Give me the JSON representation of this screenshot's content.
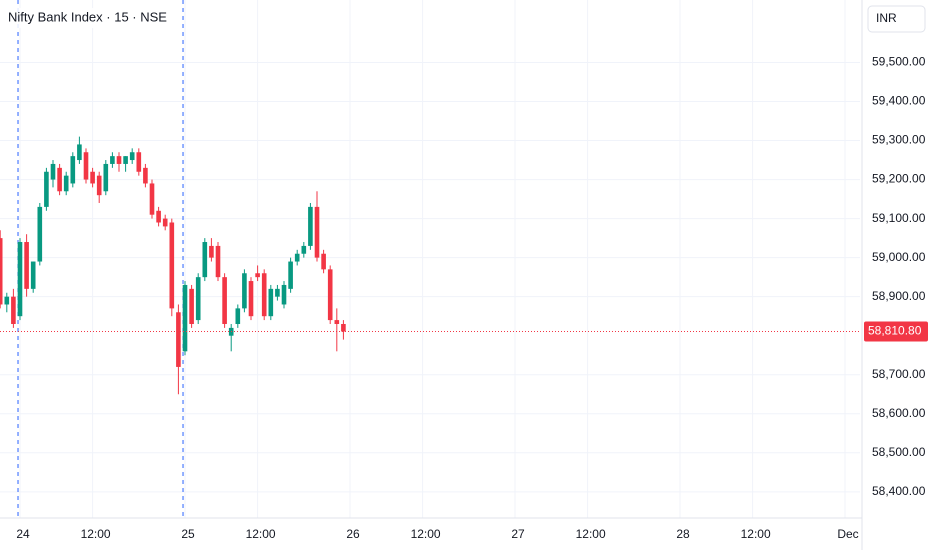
{
  "chart_data": {
    "type": "candlestick",
    "title": "Nifty Bank Index · 15 · NSE",
    "currency": "INR",
    "up_color": "#089981",
    "down_color": "#f23645",
    "grid": true,
    "x": [
      -3,
      -2,
      -1,
      0,
      1,
      2,
      3,
      4,
      5,
      6,
      7,
      8,
      9,
      10,
      11,
      12,
      13,
      14,
      15,
      16,
      17,
      18,
      19,
      20,
      21,
      22,
      23,
      24,
      25,
      26,
      27,
      28,
      29,
      30,
      31,
      32,
      33,
      34,
      35,
      36,
      37,
      38,
      39,
      40,
      41,
      42,
      43,
      44,
      45,
      46,
      47,
      48,
      49
    ],
    "open": [
      59050,
      58880,
      58900,
      58850,
      59040,
      58920,
      58990,
      59130,
      59200,
      59230,
      59170,
      59190,
      59250,
      59270,
      59220,
      59210,
      59170,
      59240,
      59260,
      59240,
      59250,
      59270,
      59230,
      59190,
      59120,
      59100,
      59090,
      58860,
      58760,
      58920,
      58840,
      58950,
      59030,
      59030,
      58950,
      58800,
      58830,
      58870,
      58940,
      58960,
      58960,
      58850,
      58900,
      58880,
      58920,
      58990,
      59010,
      59030,
      59130,
      59010,
      58970,
      58840,
      58830
    ],
    "high": [
      59070,
      58910,
      58920,
      59050,
      59060,
      58990,
      59140,
      59230,
      59250,
      59240,
      59220,
      59270,
      59310,
      59280,
      59230,
      59220,
      59250,
      59270,
      59270,
      59260,
      59280,
      59280,
      59240,
      59200,
      59130,
      59110,
      59100,
      58880,
      58940,
      58930,
      58960,
      59050,
      59050,
      59040,
      58960,
      58830,
      58880,
      58970,
      58950,
      58980,
      58970,
      58930,
      58930,
      58940,
      59000,
      59020,
      59040,
      59140,
      59170,
      59020,
      58980,
      58870,
      58840
    ],
    "low": [
      58870,
      58860,
      58820,
      58840,
      58900,
      58910,
      58980,
      59120,
      59180,
      59160,
      59160,
      59180,
      59240,
      59190,
      59180,
      59140,
      59160,
      59230,
      59220,
      59220,
      59240,
      59210,
      59180,
      59100,
      59080,
      59070,
      58850,
      58650,
      58750,
      58820,
      58830,
      58940,
      58990,
      58940,
      58820,
      58760,
      58820,
      58860,
      58840,
      58940,
      58840,
      58840,
      58890,
      58870,
      58910,
      58980,
      59000,
      59020,
      58990,
      58960,
      58830,
      58760,
      58790
    ],
    "close": [
      58880,
      58900,
      58830,
      59040,
      58920,
      58990,
      59130,
      59220,
      59240,
      59170,
      59210,
      59260,
      59290,
      59200,
      59190,
      59160,
      59240,
      59260,
      59240,
      59260,
      59270,
      59220,
      59190,
      59110,
      59090,
      59080,
      58870,
      58720,
      58930,
      58830,
      58950,
      59040,
      59000,
      58950,
      58830,
      58820,
      58870,
      58960,
      58850,
      58950,
      58850,
      58920,
      58920,
      58930,
      58990,
      59010,
      59030,
      59130,
      59000,
      58970,
      58840,
      58830,
      58810.8
    ],
    "xlim": [
      -3.03,
      127.27
    ],
    "xticks": [
      {
        "value": 0,
        "label": "24"
      },
      {
        "value": 11,
        "label": "12:00"
      },
      {
        "value": 25,
        "label": "25"
      },
      {
        "value": 36,
        "label": "12:00"
      },
      {
        "value": 50,
        "label": "26"
      },
      {
        "value": 61,
        "label": "12:00"
      },
      {
        "value": 75,
        "label": "27"
      },
      {
        "value": 86,
        "label": "12:00"
      },
      {
        "value": 100,
        "label": "28"
      },
      {
        "value": 111,
        "label": "12:00"
      },
      {
        "value": 125,
        "label": "Dec"
      }
    ],
    "session_breaks": [
      -0.3,
      24.7
    ],
    "ylim": [
      58333,
      59660
    ],
    "yticks": [
      {
        "value": 58400,
        "label": "58,400.00"
      },
      {
        "value": 58500,
        "label": "58,500.00"
      },
      {
        "value": 58600,
        "label": "58,600.00"
      },
      {
        "value": 58700,
        "label": "58,700.00"
      },
      {
        "value": 58900,
        "label": "58,900.00"
      },
      {
        "value": 59000,
        "label": "59,000.00"
      },
      {
        "value": 59100,
        "label": "59,100.00"
      },
      {
        "value": 59200,
        "label": "59,200.00"
      },
      {
        "value": 59300,
        "label": "59,300.00"
      },
      {
        "value": 59400,
        "label": "59,400.00"
      },
      {
        "value": 59500,
        "label": "59,500.00"
      }
    ],
    "last_price": {
      "value": 58810.8,
      "label": "58,810.80"
    }
  }
}
